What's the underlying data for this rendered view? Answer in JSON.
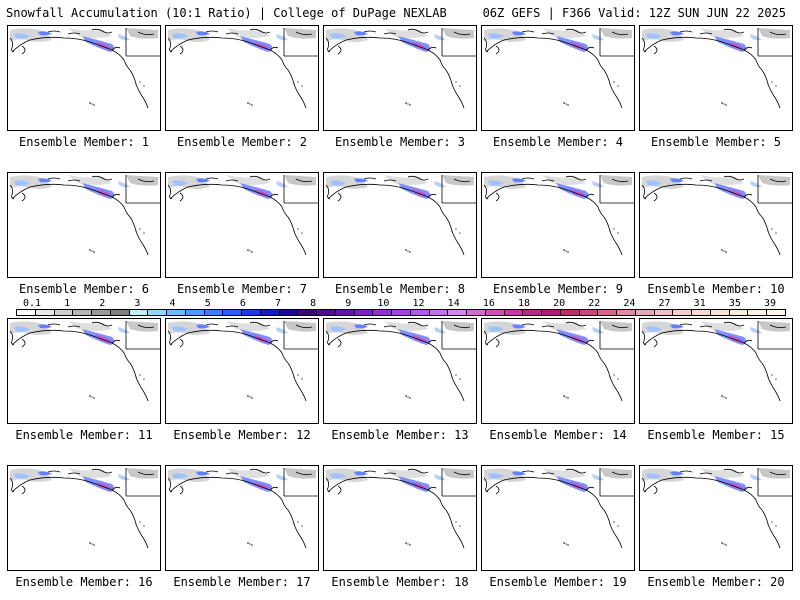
{
  "header": {
    "left": "Snowfall Accumulation (10:1 Ratio) | College of DuPage NEXLAB",
    "right": "06Z GEFS | F366 Valid: 12Z SUN JUN 22 2025"
  },
  "panels": [
    {
      "caption": "Ensemble Member: 1"
    },
    {
      "caption": "Ensemble Member: 2"
    },
    {
      "caption": "Ensemble Member: 3"
    },
    {
      "caption": "Ensemble Member: 4"
    },
    {
      "caption": "Ensemble Member: 5"
    },
    {
      "caption": "Ensemble Member: 6"
    },
    {
      "caption": "Ensemble Member: 7"
    },
    {
      "caption": "Ensemble Member: 8"
    },
    {
      "caption": "Ensemble Member: 9"
    },
    {
      "caption": "Ensemble Member: 10"
    },
    {
      "caption": "Ensemble Member: 11"
    },
    {
      "caption": "Ensemble Member: 12"
    },
    {
      "caption": "Ensemble Member: 13"
    },
    {
      "caption": "Ensemble Member: 14"
    },
    {
      "caption": "Ensemble Member: 15"
    },
    {
      "caption": "Ensemble Member: 16"
    },
    {
      "caption": "Ensemble Member: 17"
    },
    {
      "caption": "Ensemble Member: 18"
    },
    {
      "caption": "Ensemble Member: 19"
    },
    {
      "caption": "Ensemble Member: 20"
    }
  ],
  "colorbar": {
    "labels": [
      "0.1",
      "1",
      "2",
      "3",
      "4",
      "5",
      "6",
      "7",
      "8",
      "9",
      "10",
      "12",
      "14",
      "16",
      "18",
      "20",
      "22",
      "24",
      "27",
      "31",
      "35",
      "39"
    ],
    "colors": [
      "#ffffff",
      "#e8e8e8",
      "#cfcfcf",
      "#b5b5b5",
      "#9a9a9a",
      "#808080",
      "#b8f0ff",
      "#8fd8ff",
      "#6cbcff",
      "#4f9cff",
      "#3a7dff",
      "#2a5cff",
      "#1a3ce8",
      "#1020c0",
      "#200890",
      "#3a0a70",
      "#520e88",
      "#6a149e",
      "#8020b4",
      "#9430c6",
      "#a642d6",
      "#b858e2",
      "#c86eea",
      "#d884f0",
      "#d26ad2",
      "#ca50c0",
      "#c03aaa",
      "#b42894",
      "#a81a80",
      "#b03070",
      "#c04a80",
      "#d06890",
      "#e088a4",
      "#eaa4b8",
      "#f2bcc8",
      "#f6cccc",
      "#f9d9cf",
      "#fbe3d4",
      "#fdebd9",
      "#fef2e2",
      "#fff7ec"
    ]
  }
}
